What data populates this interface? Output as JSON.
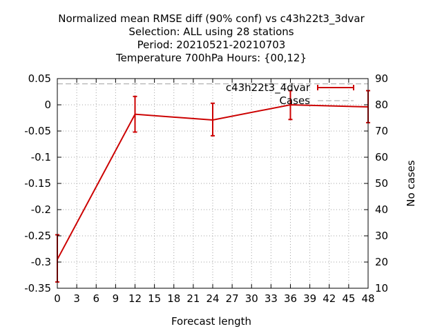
{
  "chart_data": {
    "type": "line",
    "title_lines": [
      "Normalized mean RMSE diff (90% conf) vs c43h22t3_3dvar",
      "Selection: ALL using    28 stations",
      "Period: 20210521-20210703",
      "Temperature 700hPa   Hours: {00,12}"
    ],
    "xlabel": "Forecast length",
    "ylabel_right": "No cases",
    "xlim": [
      0,
      48
    ],
    "x_ticks": [
      0,
      3,
      6,
      9,
      12,
      15,
      18,
      21,
      24,
      27,
      30,
      33,
      36,
      39,
      42,
      45,
      48
    ],
    "ylim": [
      -0.35,
      0.05
    ],
    "y_ticks": [
      0.05,
      0,
      -0.05,
      -0.1,
      -0.15,
      -0.2,
      -0.25,
      -0.3,
      -0.35
    ],
    "y_tick_labels": [
      "0.05",
      "0",
      "-0.05",
      "-0.1",
      "-0.15",
      "-0.2",
      "-0.25",
      "-0.3",
      "-0.35"
    ],
    "y2lim": [
      10,
      90
    ],
    "y2_ticks": [
      90,
      80,
      70,
      60,
      50,
      40,
      30,
      20,
      10
    ],
    "grid": true,
    "legend_position": "top-right",
    "series": [
      {
        "name": "c43h22t3_4dvar",
        "color": "#cc0000",
        "style": "line-errorbars",
        "x": [
          0,
          12,
          24,
          36,
          48
        ],
        "y": [
          -0.295,
          -0.018,
          -0.029,
          0.0,
          -0.004
        ],
        "err_low": [
          -0.338,
          -0.052,
          -0.059,
          -0.028,
          -0.034
        ],
        "err_high": [
          -0.248,
          0.016,
          0.003,
          0.027,
          0.027
        ]
      },
      {
        "name": "Cases",
        "color": "#a0a0a0",
        "style": "dashed",
        "axis": "right",
        "x": [
          0,
          12,
          24,
          36,
          48
        ],
        "y": [
          88,
          88,
          88,
          88,
          88
        ]
      }
    ]
  }
}
